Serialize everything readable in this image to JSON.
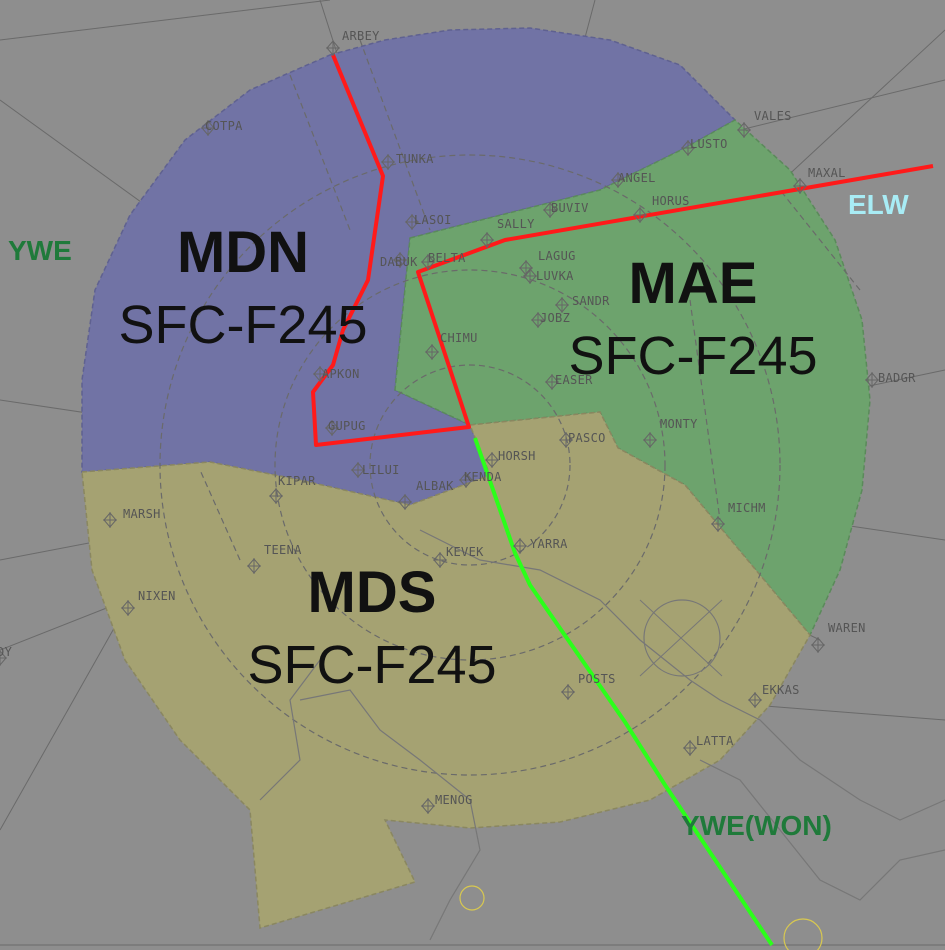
{
  "sectors": [
    {
      "name": "MDN",
      "altitudes": "SFC-F245"
    },
    {
      "name": "MAE",
      "altitudes": "SFC-F245"
    },
    {
      "name": "MDS",
      "altitudes": "SFC-F245"
    }
  ],
  "neighbors": [
    {
      "label": "YWE",
      "color": "#1f7a3a"
    },
    {
      "label": "ELW",
      "color": "#a8ecf5"
    },
    {
      "label": "YWE(WON)",
      "color": "#1f7a3a"
    }
  ],
  "fixes": [
    "ARBEY",
    "COTPA",
    "TUNKA",
    "LASOI",
    "DABUK",
    "BELTA",
    "SALLY",
    "BUVIV",
    "LUSTO",
    "ANGEL",
    "HORUS",
    "MAXAL",
    "VALES",
    "LAGUG",
    "LUVKA",
    "SANDR",
    "JOBZ",
    "CHIMU",
    "APKON",
    "GUPUG",
    "LILUI",
    "ALBAK",
    "HORSH",
    "PASCO",
    "MONTY",
    "EASER",
    "BADGR",
    "MARSH",
    "TEENA",
    "KEVEK",
    "YARRA",
    "NIXEN",
    "MICHM",
    "WAREN",
    "EKKAS",
    "LATTA",
    "POSTS",
    "MENOG",
    "KIPAR",
    "KENDA",
    "INDY"
  ],
  "colors": {
    "mdn": "#7173a5",
    "mae": "#6da36d",
    "mds": "#a5a272",
    "boundary_red": "#ff1a1a",
    "boundary_green": "#2bff1a"
  }
}
